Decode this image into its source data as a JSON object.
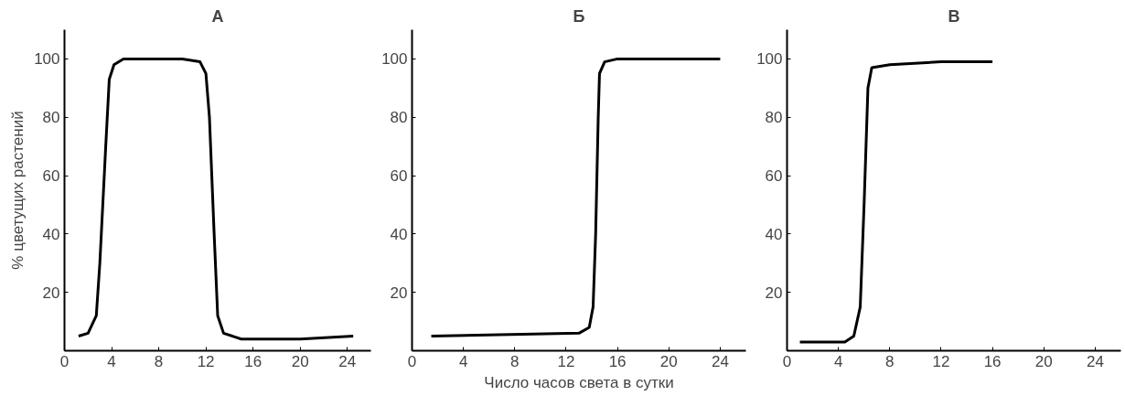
{
  "chart_data": [
    {
      "type": "line",
      "title": "А",
      "ylabel": "% цветущих растений",
      "color": "#000000",
      "xlim": [
        0,
        26
      ],
      "ylim": [
        0,
        110
      ],
      "xticks": [
        0,
        4,
        8,
        12,
        16,
        20,
        24
      ],
      "yticks": [
        20,
        40,
        60,
        80,
        100
      ],
      "grid": false,
      "x": [
        1.2,
        2,
        2.7,
        3,
        3.5,
        3.8,
        4.2,
        5,
        10,
        11.5,
        12,
        12.3,
        12.7,
        13,
        13.5,
        15,
        20,
        24.5
      ],
      "values": [
        5,
        6,
        12,
        30,
        70,
        93,
        98,
        100,
        100,
        99,
        95,
        80,
        40,
        12,
        6,
        4,
        4,
        5
      ]
    },
    {
      "type": "line",
      "title": "Б",
      "xlabel": "Число часов света в сутки",
      "color": "#000000",
      "xlim": [
        0,
        26
      ],
      "ylim": [
        0,
        110
      ],
      "xticks": [
        0,
        4,
        8,
        12,
        16,
        20,
        24
      ],
      "yticks": [
        20,
        40,
        60,
        80,
        100
      ],
      "grid": false,
      "x": [
        1.5,
        13,
        13.8,
        14.1,
        14.3,
        14.5,
        14.6,
        15,
        16,
        24
      ],
      "values": [
        5,
        6,
        8,
        15,
        40,
        80,
        95,
        99,
        100,
        100
      ]
    },
    {
      "type": "line",
      "title": "В",
      "color": "#000000",
      "xlim": [
        0,
        26
      ],
      "ylim": [
        0,
        110
      ],
      "xticks": [
        0,
        4,
        8,
        12,
        16,
        20,
        24
      ],
      "yticks": [
        20,
        40,
        60,
        80,
        100
      ],
      "grid": false,
      "x": [
        1,
        4.5,
        5.2,
        5.7,
        6,
        6.3,
        6.6,
        8,
        12,
        16
      ],
      "values": [
        3,
        3,
        5,
        15,
        50,
        90,
        97,
        98,
        99,
        99
      ]
    }
  ]
}
